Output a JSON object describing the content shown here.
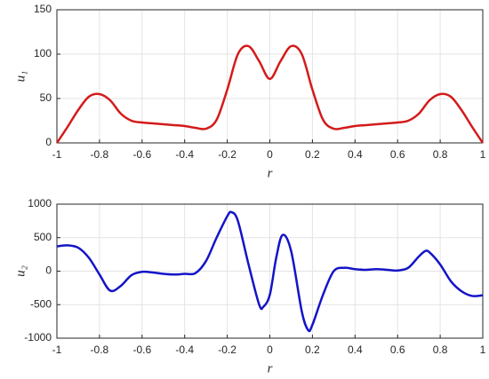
{
  "chart_data": [
    {
      "type": "line",
      "xlabel": "r",
      "ylabel": "u₁",
      "x": [
        -1,
        -0.95,
        -0.9,
        -0.85,
        -0.8,
        -0.75,
        -0.7,
        -0.65,
        -0.6,
        -0.55,
        -0.5,
        -0.45,
        -0.4,
        -0.35,
        -0.3,
        -0.25,
        -0.2,
        -0.15,
        -0.1,
        -0.05,
        0,
        0.05,
        0.1,
        0.15,
        0.2,
        0.25,
        0.3,
        0.35,
        0.4,
        0.45,
        0.5,
        0.55,
        0.6,
        0.65,
        0.7,
        0.75,
        0.8,
        0.85,
        0.9,
        0.95,
        1
      ],
      "series": [
        {
          "name": "u1",
          "color": "#d41a1a",
          "values": [
            0,
            18,
            37,
            52,
            55,
            48,
            33,
            25,
            23,
            22,
            21,
            20,
            19,
            17,
            16,
            26,
            60,
            100,
            109,
            92,
            72,
            92,
            109,
            100,
            60,
            26,
            16,
            17,
            19,
            20,
            21,
            22,
            23,
            25,
            33,
            48,
            55,
            52,
            37,
            18,
            0
          ]
        }
      ],
      "xlim": [
        -1,
        1
      ],
      "xticks": [
        -1,
        -0.8,
        -0.6,
        -0.4,
        -0.2,
        0,
        0.2,
        0.4,
        0.6,
        0.8,
        1
      ],
      "ylim": [
        0,
        150
      ],
      "yticks": [
        0,
        50,
        100,
        150
      ],
      "grid": true
    },
    {
      "type": "line",
      "xlabel": "r",
      "ylabel": "u₂",
      "x": [
        -1,
        -0.95,
        -0.9,
        -0.85,
        -0.8,
        -0.75,
        -0.7,
        -0.65,
        -0.6,
        -0.55,
        -0.5,
        -0.45,
        -0.4,
        -0.35,
        -0.3,
        -0.25,
        -0.2,
        -0.18,
        -0.15,
        -0.1,
        -0.05,
        -0.03,
        0,
        0.03,
        0.06,
        0.1,
        0.15,
        0.18,
        0.2,
        0.25,
        0.3,
        0.35,
        0.4,
        0.45,
        0.5,
        0.55,
        0.6,
        0.65,
        0.7,
        0.73,
        0.75,
        0.8,
        0.85,
        0.9,
        0.95,
        1
      ],
      "series": [
        {
          "name": "u2",
          "color": "#1414c8",
          "values": [
            370,
            385,
            350,
            200,
            -50,
            -290,
            -220,
            -60,
            -10,
            -20,
            -40,
            -50,
            -40,
            -30,
            150,
            500,
            820,
            880,
            750,
            100,
            -500,
            -530,
            -350,
            200,
            540,
            300,
            -600,
            -880,
            -800,
            -350,
            0,
            50,
            30,
            20,
            30,
            20,
            10,
            50,
            220,
            300,
            280,
            100,
            -150,
            -300,
            -370,
            -360
          ]
        }
      ],
      "xlim": [
        -1,
        1
      ],
      "xticks": [
        -1,
        -0.8,
        -0.6,
        -0.4,
        -0.2,
        0,
        0.2,
        0.4,
        0.6,
        0.8,
        1
      ],
      "ylim": [
        -1000,
        1000
      ],
      "yticks": [
        -1000,
        -500,
        0,
        500,
        1000
      ],
      "grid": true
    }
  ]
}
